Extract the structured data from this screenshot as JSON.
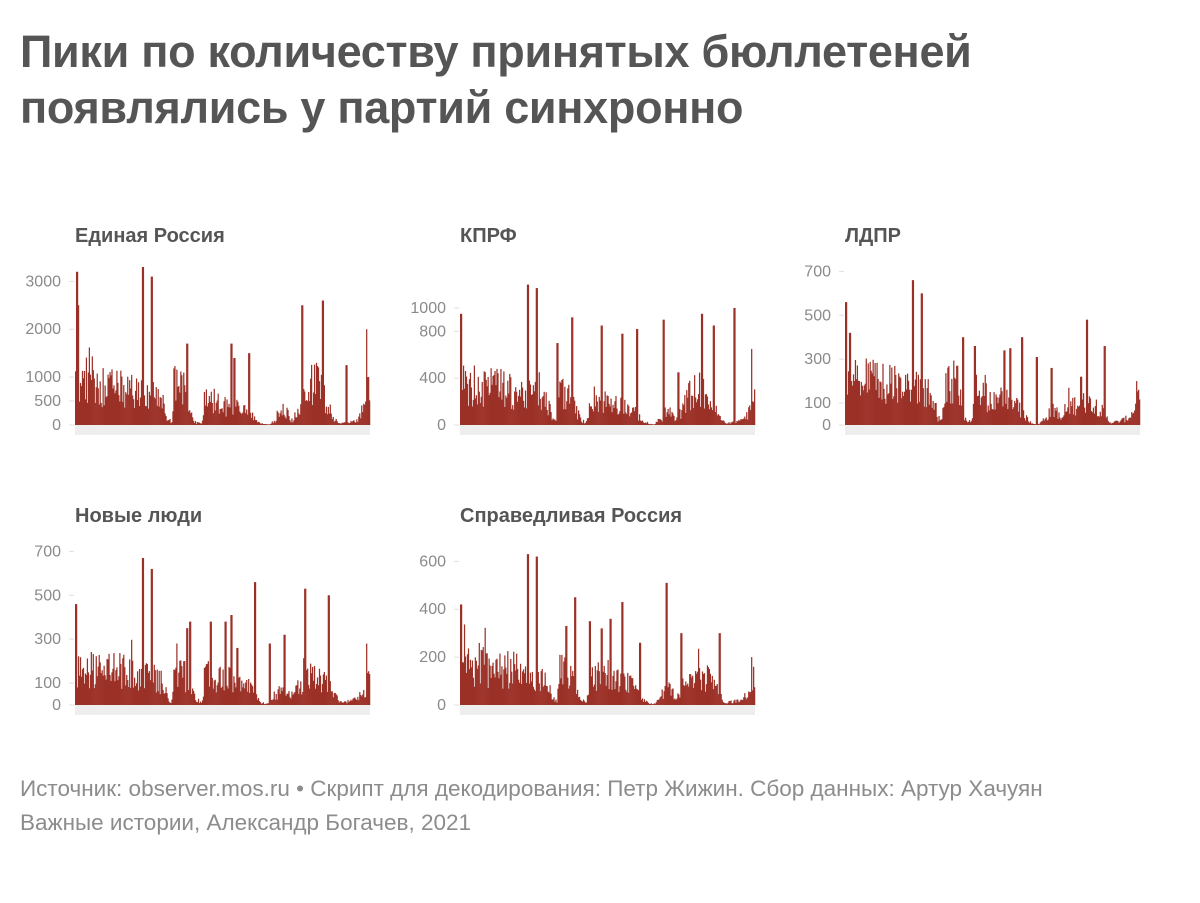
{
  "title": "Пики по количеству принятых бюллетеней появлялись у партий синхронно",
  "footer": {
    "line1": "Источник: observer.mos.ru • Скрипт для декодирования: Петр Жижин. Сбор данных: Артур Хачуян",
    "line2": "Важные истории, Александр Богачев, 2021"
  },
  "colors": {
    "bar": "#9b3027",
    "axis": "#eeeeee",
    "tick": "#e0e0e0"
  },
  "chart_data": [
    {
      "type": "bar",
      "title": "Единая Россия",
      "ylim": [
        0,
        3300
      ],
      "yticks": [
        0,
        500,
        1000,
        2000,
        3000
      ],
      "xlabel": "",
      "ylabel": "",
      "n_bars": 300,
      "base": [
        [
          0,
          1150
        ],
        [
          0.06,
          1200
        ],
        [
          0.1,
          1000
        ],
        [
          0.2,
          900
        ],
        [
          0.28,
          720
        ],
        [
          0.3,
          500
        ],
        [
          0.315,
          120
        ],
        [
          0.33,
          50
        ],
        [
          0.335,
          1200
        ],
        [
          0.37,
          900
        ],
        [
          0.395,
          250
        ],
        [
          0.41,
          60
        ],
        [
          0.43,
          40
        ],
        [
          0.44,
          750
        ],
        [
          0.5,
          500
        ],
        [
          0.56,
          450
        ],
        [
          0.6,
          250
        ],
        [
          0.62,
          60
        ],
        [
          0.64,
          20
        ],
        [
          0.66,
          20
        ],
        [
          0.7,
          300
        ],
        [
          0.72,
          350
        ],
        [
          0.73,
          70
        ],
        [
          0.74,
          150
        ],
        [
          0.76,
          400
        ],
        [
          0.78,
          1000
        ],
        [
          0.82,
          1200
        ],
        [
          0.86,
          500
        ],
        [
          0.88,
          150
        ],
        [
          0.9,
          40
        ],
        [
          0.93,
          60
        ],
        [
          0.96,
          150
        ],
        [
          0.985,
          500
        ],
        [
          1,
          700
        ]
      ],
      "spikes": [
        [
          0.004,
          3200
        ],
        [
          0.008,
          2500
        ],
        [
          0.23,
          3300
        ],
        [
          0.26,
          3100
        ],
        [
          0.38,
          1600
        ],
        [
          0.38,
          1500
        ],
        [
          0.38,
          1700
        ],
        [
          0.53,
          1700
        ],
        [
          0.54,
          1400
        ],
        [
          0.59,
          1500
        ],
        [
          0.77,
          2500
        ],
        [
          0.84,
          2600
        ],
        [
          0.92,
          1250
        ],
        [
          0.99,
          2000
        ],
        [
          0.995,
          1000
        ]
      ]
    },
    {
      "type": "bar",
      "title": "КПРФ",
      "ylim": [
        0,
        1350
      ],
      "yticks": [
        0,
        400,
        800,
        1000
      ],
      "xlabel": "",
      "ylabel": "",
      "n_bars": 300,
      "base": [
        [
          0,
          450
        ],
        [
          0.1,
          420
        ],
        [
          0.2,
          350
        ],
        [
          0.28,
          300
        ],
        [
          0.3,
          200
        ],
        [
          0.315,
          50
        ],
        [
          0.33,
          30
        ],
        [
          0.335,
          400
        ],
        [
          0.37,
          300
        ],
        [
          0.395,
          150
        ],
        [
          0.41,
          50
        ],
        [
          0.43,
          20
        ],
        [
          0.44,
          300
        ],
        [
          0.5,
          250
        ],
        [
          0.56,
          200
        ],
        [
          0.6,
          120
        ],
        [
          0.62,
          40
        ],
        [
          0.64,
          10
        ],
        [
          0.66,
          10
        ],
        [
          0.7,
          120
        ],
        [
          0.72,
          150
        ],
        [
          0.73,
          30
        ],
        [
          0.74,
          80
        ],
        [
          0.76,
          200
        ],
        [
          0.78,
          350
        ],
        [
          0.82,
          400
        ],
        [
          0.86,
          200
        ],
        [
          0.88,
          80
        ],
        [
          0.9,
          20
        ],
        [
          0.93,
          30
        ],
        [
          0.96,
          60
        ],
        [
          0.985,
          150
        ],
        [
          1,
          280
        ]
      ],
      "spikes": [
        [
          0.003,
          950
        ],
        [
          0.23,
          1200
        ],
        [
          0.26,
          1170
        ],
        [
          0.33,
          700
        ],
        [
          0.38,
          920
        ],
        [
          0.48,
          850
        ],
        [
          0.55,
          780
        ],
        [
          0.6,
          820
        ],
        [
          0.69,
          900
        ],
        [
          0.74,
          450
        ],
        [
          0.82,
          950
        ],
        [
          0.86,
          850
        ],
        [
          0.93,
          1000
        ],
        [
          0.99,
          650
        ]
      ]
    },
    {
      "type": "bar",
      "title": "ЛДПР",
      "ylim": [
        0,
        720
      ],
      "yticks": [
        0,
        100,
        300,
        500,
        700
      ],
      "xlabel": "",
      "ylabel": "",
      "n_bars": 300,
      "base": [
        [
          0,
          260
        ],
        [
          0.1,
          250
        ],
        [
          0.2,
          220
        ],
        [
          0.28,
          190
        ],
        [
          0.3,
          130
        ],
        [
          0.315,
          40
        ],
        [
          0.33,
          25
        ],
        [
          0.335,
          260
        ],
        [
          0.37,
          200
        ],
        [
          0.395,
          90
        ],
        [
          0.41,
          30
        ],
        [
          0.43,
          15
        ],
        [
          0.44,
          180
        ],
        [
          0.5,
          150
        ],
        [
          0.56,
          140
        ],
        [
          0.6,
          80
        ],
        [
          0.62,
          30
        ],
        [
          0.64,
          8
        ],
        [
          0.66,
          8
        ],
        [
          0.7,
          80
        ],
        [
          0.72,
          90
        ],
        [
          0.73,
          25
        ],
        [
          0.74,
          50
        ],
        [
          0.76,
          110
        ],
        [
          0.78,
          120
        ],
        [
          0.82,
          130
        ],
        [
          0.86,
          110
        ],
        [
          0.88,
          60
        ],
        [
          0.9,
          15
        ],
        [
          0.93,
          20
        ],
        [
          0.96,
          40
        ],
        [
          0.985,
          90
        ],
        [
          1,
          190
        ]
      ],
      "spikes": [
        [
          0.003,
          560
        ],
        [
          0.015,
          420
        ],
        [
          0.23,
          660
        ],
        [
          0.26,
          600
        ],
        [
          0.38,
          270
        ],
        [
          0.4,
          400
        ],
        [
          0.44,
          360
        ],
        [
          0.54,
          340
        ],
        [
          0.56,
          350
        ],
        [
          0.6,
          400
        ],
        [
          0.65,
          310
        ],
        [
          0.7,
          260
        ],
        [
          0.8,
          220
        ],
        [
          0.82,
          480
        ],
        [
          0.88,
          360
        ],
        [
          0.99,
          200
        ]
      ]
    },
    {
      "type": "bar",
      "title": "Новые люди",
      "ylim": [
        0,
        720
      ],
      "yticks": [
        0,
        100,
        300,
        500,
        700
      ],
      "xlabel": "",
      "ylabel": "",
      "n_bars": 300,
      "base": [
        [
          0,
          220
        ],
        [
          0.1,
          210
        ],
        [
          0.2,
          190
        ],
        [
          0.28,
          160
        ],
        [
          0.3,
          110
        ],
        [
          0.315,
          30
        ],
        [
          0.33,
          20
        ],
        [
          0.335,
          200
        ],
        [
          0.37,
          170
        ],
        [
          0.395,
          80
        ],
        [
          0.41,
          30
        ],
        [
          0.43,
          15
        ],
        [
          0.44,
          180
        ],
        [
          0.5,
          150
        ],
        [
          0.56,
          140
        ],
        [
          0.6,
          90
        ],
        [
          0.62,
          30
        ],
        [
          0.64,
          8
        ],
        [
          0.66,
          8
        ],
        [
          0.7,
          90
        ],
        [
          0.72,
          100
        ],
        [
          0.73,
          25
        ],
        [
          0.74,
          50
        ],
        [
          0.76,
          120
        ],
        [
          0.78,
          150
        ],
        [
          0.82,
          180
        ],
        [
          0.86,
          130
        ],
        [
          0.88,
          60
        ],
        [
          0.9,
          15
        ],
        [
          0.93,
          20
        ],
        [
          0.96,
          40
        ],
        [
          0.985,
          90
        ],
        [
          1,
          160
        ]
      ],
      "spikes": [
        [
          0.003,
          460
        ],
        [
          0.23,
          670
        ],
        [
          0.26,
          620
        ],
        [
          0.37,
          200
        ],
        [
          0.38,
          350
        ],
        [
          0.39,
          380
        ],
        [
          0.46,
          380
        ],
        [
          0.51,
          380
        ],
        [
          0.53,
          410
        ],
        [
          0.55,
          260
        ],
        [
          0.61,
          560
        ],
        [
          0.66,
          280
        ],
        [
          0.71,
          320
        ],
        [
          0.78,
          530
        ],
        [
          0.86,
          500
        ],
        [
          0.99,
          280
        ]
      ]
    },
    {
      "type": "bar",
      "title": "Справедливая Россия",
      "ylim": [
        0,
        660
      ],
      "yticks": [
        0,
        200,
        400,
        600
      ],
      "xlabel": "",
      "ylabel": "",
      "n_bars": 300,
      "base": [
        [
          0,
          210
        ],
        [
          0.1,
          200
        ],
        [
          0.2,
          180
        ],
        [
          0.28,
          150
        ],
        [
          0.3,
          100
        ],
        [
          0.315,
          30
        ],
        [
          0.33,
          20
        ],
        [
          0.335,
          190
        ],
        [
          0.37,
          160
        ],
        [
          0.395,
          70
        ],
        [
          0.41,
          25
        ],
        [
          0.43,
          12
        ],
        [
          0.44,
          170
        ],
        [
          0.5,
          140
        ],
        [
          0.56,
          130
        ],
        [
          0.6,
          80
        ],
        [
          0.62,
          25
        ],
        [
          0.64,
          8
        ],
        [
          0.66,
          8
        ],
        [
          0.7,
          80
        ],
        [
          0.72,
          90
        ],
        [
          0.73,
          22
        ],
        [
          0.74,
          45
        ],
        [
          0.76,
          110
        ],
        [
          0.78,
          140
        ],
        [
          0.82,
          160
        ],
        [
          0.86,
          120
        ],
        [
          0.88,
          55
        ],
        [
          0.9,
          12
        ],
        [
          0.93,
          18
        ],
        [
          0.96,
          35
        ],
        [
          0.985,
          80
        ],
        [
          1,
          150
        ]
      ],
      "spikes": [
        [
          0.003,
          420
        ],
        [
          0.23,
          630
        ],
        [
          0.26,
          620
        ],
        [
          0.36,
          330
        ],
        [
          0.39,
          450
        ],
        [
          0.44,
          350
        ],
        [
          0.48,
          320
        ],
        [
          0.51,
          360
        ],
        [
          0.55,
          430
        ],
        [
          0.61,
          260
        ],
        [
          0.7,
          510
        ],
        [
          0.75,
          300
        ],
        [
          0.88,
          300
        ],
        [
          0.99,
          200
        ]
      ]
    }
  ]
}
